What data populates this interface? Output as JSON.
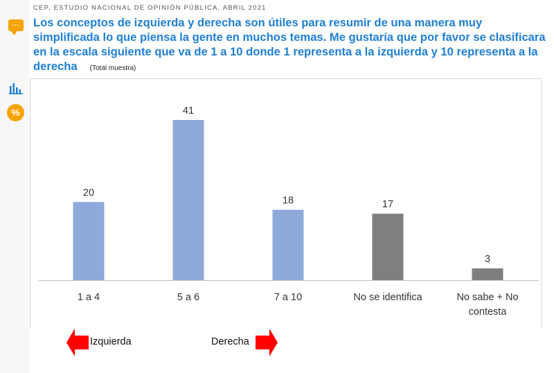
{
  "header": {
    "source": "CEP, ESTUDIO NACIONAL DE OPINIÓN PÚBLICA, ABRIL 2021",
    "question": "Los conceptos de izquierda y derecha son útiles para resumir de una manera muy simplificada lo que piensa la gente en muchos temas. Me gustaría que por favor se clasificara en la escala siguiente que va de 1 a 10 donde 1 representa a la izquierda y 10 representa a la derecha",
    "subtitle": "(Total muestra)"
  },
  "icons": {
    "speech": "speech-bubble-icon",
    "bar": "bar-chart-icon",
    "percent": "percent-icon",
    "percent_glyph": "%",
    "speech_glyph": "..."
  },
  "colors": {
    "title": "#1f7fd4",
    "accent": "#f5a300",
    "bar_blue": "#8eaadb",
    "bar_gray": "#7f7f7f",
    "arrow_red": "#ff0000"
  },
  "chart_data": {
    "type": "bar",
    "categories": [
      "1 a 4",
      "5 a 6",
      "7 a 10",
      "No se identifica",
      "No sabe + No contesta"
    ],
    "category_lines": [
      [
        "1 a 4"
      ],
      [
        "5 a 6"
      ],
      [
        "7 a 10"
      ],
      [
        "No se identifica"
      ],
      [
        "No sabe + No",
        "contesta"
      ]
    ],
    "values": [
      20,
      41,
      18,
      17,
      3
    ],
    "bar_colors": [
      "#8eaadb",
      "#8eaadb",
      "#8eaadb",
      "#7f7f7f",
      "#7f7f7f"
    ],
    "data_labels": [
      "20",
      "41",
      "18",
      "17",
      "3"
    ],
    "ylim": [
      0,
      41
    ],
    "grid": false,
    "title": "",
    "xlabel": "",
    "ylabel": ""
  },
  "legend": {
    "left_label": "Izquierda",
    "right_label": "Derecha"
  }
}
